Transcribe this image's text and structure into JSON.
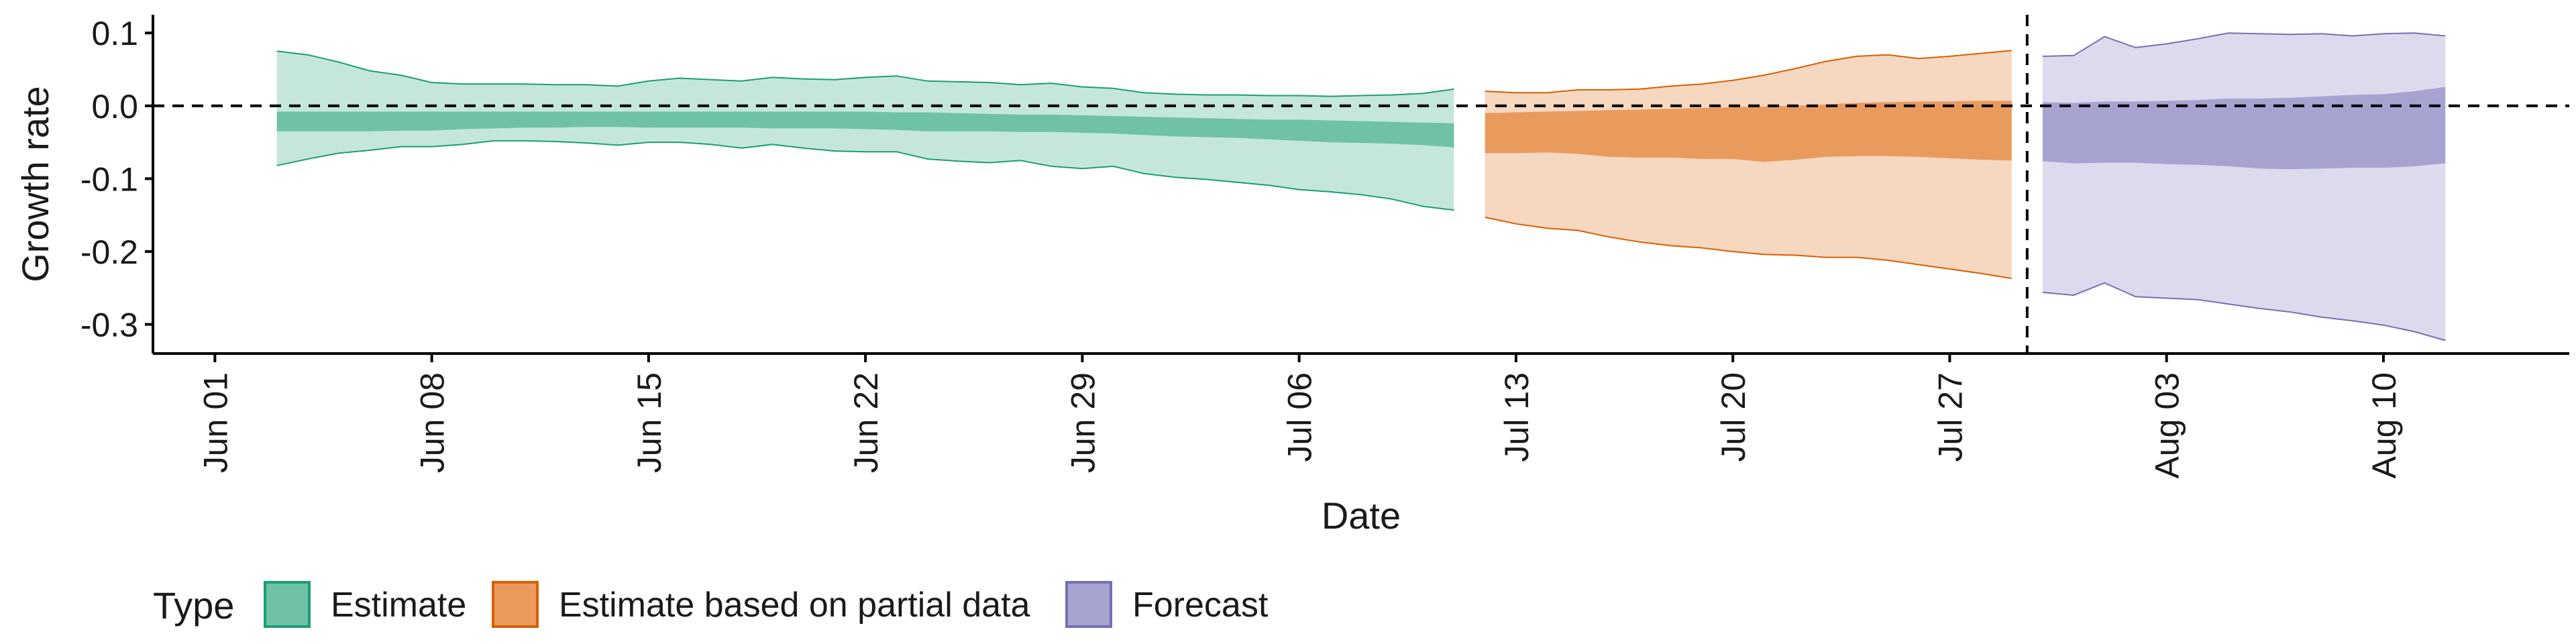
{
  "chart_data": {
    "type": "area",
    "xlabel": "Date",
    "ylabel": "Growth rate",
    "ylim": [
      -0.34,
      0.125
    ],
    "xlim": [
      "2020-05-30",
      "2020-08-16"
    ],
    "y_ticks": [
      0.1,
      0.0,
      -0.1,
      -0.2,
      -0.3
    ],
    "y_tick_labels": [
      "0.1",
      "0.0",
      "-0.1",
      "-0.2",
      "-0.3"
    ],
    "x_ticks": [
      "2020-06-01",
      "2020-06-08",
      "2020-06-15",
      "2020-06-22",
      "2020-06-29",
      "2020-07-06",
      "2020-07-13",
      "2020-07-20",
      "2020-07-27",
      "2020-08-03",
      "2020-08-10"
    ],
    "x_tick_labels": [
      "Jun 01",
      "Jun 08",
      "Jun 15",
      "Jun 22",
      "Jun 29",
      "Jul 06",
      "Jul 13",
      "Jul 20",
      "Jul 27",
      "Aug 03",
      "Aug 10"
    ],
    "reference_hline": 0.0,
    "reference_vline": "2020-07-29",
    "legend": {
      "title": "Type",
      "position": "bottom-left",
      "entries": [
        "Estimate",
        "Estimate based on partial data",
        "Forecast"
      ]
    },
    "series": [
      {
        "name": "Estimate",
        "fill_color": "#6fc2a6",
        "line_color": "#1b9e77",
        "x": [
          "2020-06-03",
          "2020-06-04",
          "2020-06-05",
          "2020-06-06",
          "2020-06-07",
          "2020-06-08",
          "2020-06-09",
          "2020-06-10",
          "2020-06-11",
          "2020-06-12",
          "2020-06-13",
          "2020-06-14",
          "2020-06-15",
          "2020-06-16",
          "2020-06-17",
          "2020-06-18",
          "2020-06-19",
          "2020-06-20",
          "2020-06-21",
          "2020-06-22",
          "2020-06-23",
          "2020-06-24",
          "2020-06-25",
          "2020-06-26",
          "2020-06-27",
          "2020-06-28",
          "2020-06-29",
          "2020-06-30",
          "2020-07-01",
          "2020-07-02",
          "2020-07-03",
          "2020-07-04",
          "2020-07-05",
          "2020-07-06",
          "2020-07-07",
          "2020-07-08",
          "2020-07-09",
          "2020-07-10",
          "2020-07-11"
        ],
        "upper_90": [
          0.075,
          0.07,
          0.06,
          0.048,
          0.042,
          0.032,
          0.03,
          0.03,
          0.03,
          0.029,
          0.029,
          0.027,
          0.034,
          0.038,
          0.036,
          0.034,
          0.039,
          0.037,
          0.036,
          0.039,
          0.041,
          0.034,
          0.033,
          0.032,
          0.029,
          0.031,
          0.026,
          0.024,
          0.018,
          0.016,
          0.015,
          0.015,
          0.014,
          0.014,
          0.013,
          0.014,
          0.015,
          0.017,
          0.023
        ],
        "upper_50": [
          -0.008,
          -0.008,
          -0.008,
          -0.008,
          -0.008,
          -0.008,
          -0.008,
          -0.008,
          -0.008,
          -0.008,
          -0.008,
          -0.008,
          -0.008,
          -0.008,
          -0.008,
          -0.008,
          -0.008,
          -0.008,
          -0.008,
          -0.008,
          -0.009,
          -0.009,
          -0.01,
          -0.011,
          -0.012,
          -0.012,
          -0.013,
          -0.014,
          -0.015,
          -0.016,
          -0.017,
          -0.018,
          -0.019,
          -0.019,
          -0.02,
          -0.021,
          -0.022,
          -0.023,
          -0.024
        ],
        "lower_50": [
          -0.035,
          -0.035,
          -0.035,
          -0.035,
          -0.034,
          -0.034,
          -0.032,
          -0.031,
          -0.03,
          -0.03,
          -0.029,
          -0.029,
          -0.03,
          -0.03,
          -0.03,
          -0.03,
          -0.031,
          -0.031,
          -0.031,
          -0.032,
          -0.033,
          -0.035,
          -0.035,
          -0.035,
          -0.036,
          -0.036,
          -0.037,
          -0.038,
          -0.04,
          -0.042,
          -0.043,
          -0.044,
          -0.046,
          -0.048,
          -0.05,
          -0.051,
          -0.052,
          -0.054,
          -0.057
        ],
        "lower_90": [
          -0.082,
          -0.073,
          -0.065,
          -0.061,
          -0.056,
          -0.056,
          -0.053,
          -0.048,
          -0.048,
          -0.049,
          -0.051,
          -0.054,
          -0.05,
          -0.05,
          -0.053,
          -0.058,
          -0.053,
          -0.058,
          -0.062,
          -0.063,
          -0.063,
          -0.073,
          -0.076,
          -0.078,
          -0.075,
          -0.083,
          -0.086,
          -0.083,
          -0.093,
          -0.098,
          -0.101,
          -0.105,
          -0.109,
          -0.115,
          -0.118,
          -0.122,
          -0.128,
          -0.138,
          -0.143
        ]
      },
      {
        "name": "Estimate based on partial data",
        "fill_color": "#e99b5e",
        "line_color": "#d95f02",
        "x": [
          "2020-07-12",
          "2020-07-13",
          "2020-07-14",
          "2020-07-15",
          "2020-07-16",
          "2020-07-17",
          "2020-07-18",
          "2020-07-19",
          "2020-07-20",
          "2020-07-21",
          "2020-07-22",
          "2020-07-23",
          "2020-07-24",
          "2020-07-25",
          "2020-07-26",
          "2020-07-27",
          "2020-07-28",
          "2020-07-29"
        ],
        "upper_90": [
          0.02,
          0.018,
          0.018,
          0.022,
          0.022,
          0.023,
          0.027,
          0.03,
          0.035,
          0.042,
          0.051,
          0.061,
          0.068,
          0.07,
          0.065,
          0.068,
          0.072,
          0.076
        ],
        "upper_50": [
          -0.01,
          -0.009,
          -0.008,
          -0.007,
          -0.006,
          -0.005,
          -0.004,
          -0.003,
          -0.002,
          -0.001,
          0.0,
          0.002,
          0.004,
          0.005,
          0.006,
          0.006,
          0.007,
          0.007
        ],
        "lower_50": [
          -0.065,
          -0.065,
          -0.064,
          -0.066,
          -0.07,
          -0.071,
          -0.071,
          -0.073,
          -0.073,
          -0.077,
          -0.074,
          -0.07,
          -0.069,
          -0.069,
          -0.07,
          -0.072,
          -0.074,
          -0.075
        ],
        "lower_90": [
          -0.153,
          -0.162,
          -0.168,
          -0.171,
          -0.18,
          -0.187,
          -0.192,
          -0.195,
          -0.2,
          -0.204,
          -0.205,
          -0.208,
          -0.208,
          -0.212,
          -0.218,
          -0.224,
          -0.23,
          -0.237
        ]
      },
      {
        "name": "Forecast",
        "fill_color": "#a7a3d1",
        "line_color": "#7570b3",
        "x": [
          "2020-07-30",
          "2020-07-31",
          "2020-08-01",
          "2020-08-02",
          "2020-08-03",
          "2020-08-04",
          "2020-08-05",
          "2020-08-06",
          "2020-08-07",
          "2020-08-08",
          "2020-08-09",
          "2020-08-10",
          "2020-08-11",
          "2020-08-12"
        ],
        "upper_90": [
          0.068,
          0.069,
          0.095,
          0.08,
          0.085,
          0.092,
          0.1,
          0.099,
          0.098,
          0.099,
          0.096,
          0.099,
          0.1,
          0.096
        ],
        "upper_50": [
          0.005,
          0.004,
          0.006,
          0.006,
          0.007,
          0.008,
          0.01,
          0.01,
          0.011,
          0.013,
          0.015,
          0.016,
          0.02,
          0.026
        ],
        "lower_50": [
          -0.076,
          -0.079,
          -0.078,
          -0.078,
          -0.08,
          -0.081,
          -0.083,
          -0.086,
          -0.087,
          -0.086,
          -0.085,
          -0.085,
          -0.083,
          -0.079
        ],
        "lower_90": [
          -0.256,
          -0.26,
          -0.243,
          -0.262,
          -0.264,
          -0.266,
          -0.272,
          -0.278,
          -0.283,
          -0.29,
          -0.295,
          -0.301,
          -0.31,
          -0.322
        ]
      }
    ]
  }
}
